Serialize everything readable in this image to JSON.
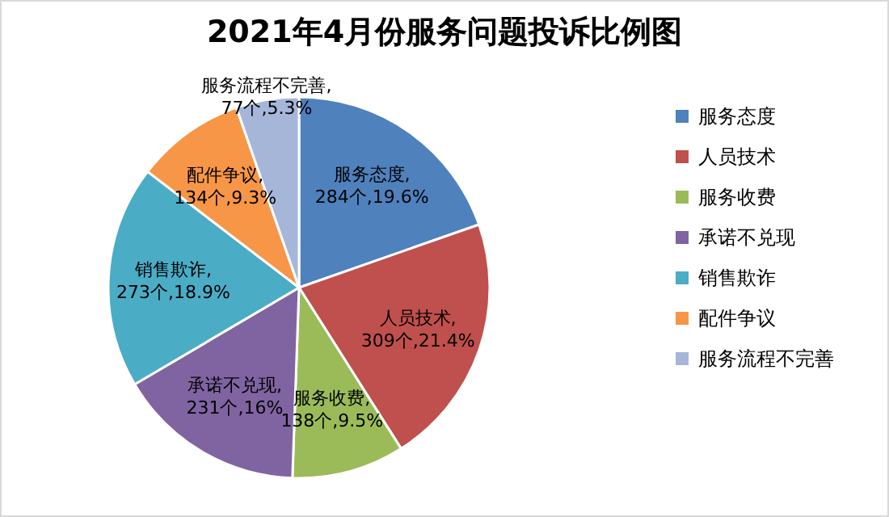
{
  "chart_data": {
    "type": "pie",
    "title": "2021年4月份服务问题投诉比例图",
    "categories": [
      "服务态度",
      "人员技术",
      "服务收费",
      "承诺不兑现",
      "销售欺诈",
      "配件争议",
      "服务流程不完善"
    ],
    "values": [
      284,
      309,
      138,
      231,
      273,
      134,
      77
    ],
    "value_labels": [
      "服务态度,\n284个,19.6%",
      "人员技术,\n309个,21.4%",
      "服务收费,\n138个,9.5%",
      "承诺不兑现,\n231个,16%",
      "销售欺诈,\n273个,18.9%",
      "配件争议,\n134个,9.3%",
      "服务流程不完善,\n77个,5.3%"
    ],
    "colors": [
      "#4f81bd",
      "#c0504d",
      "#9bbb59",
      "#8064a2",
      "#4bacc6",
      "#f79646",
      "#a5b6d9"
    ],
    "legend": "right"
  }
}
